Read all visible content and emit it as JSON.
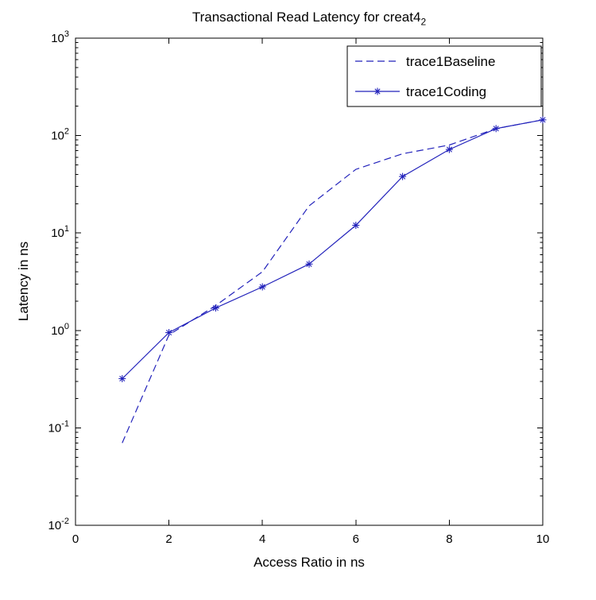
{
  "title": {
    "main": "Transactional Read Latency for creat4",
    "sub": "2"
  },
  "chart_data": {
    "type": "line",
    "title": "Transactional Read Latency for creat4_2",
    "xlabel": "Access Ratio in ns",
    "ylabel": "Latency in ns",
    "xlim": [
      0,
      10
    ],
    "x_ticks": [
      0,
      2,
      4,
      6,
      8,
      10
    ],
    "y_scale": "log",
    "ylim_exp": [
      -2,
      3
    ],
    "y_tick_exponents": [
      -2,
      -1,
      0,
      1,
      2,
      3
    ],
    "grid": false,
    "line_color": "#2222bb",
    "legend": {
      "position": "top-right",
      "entries": [
        "trace1Baseline",
        "trace1Coding"
      ]
    },
    "series": [
      {
        "name": "trace1Baseline",
        "style": "dashed",
        "marker": "none",
        "color": "#2222bb",
        "x": [
          1,
          2,
          3,
          4,
          5,
          6,
          7,
          8,
          9,
          10
        ],
        "values": [
          0.07,
          0.9,
          1.8,
          4.0,
          19,
          45,
          65,
          80,
          118,
          145
        ]
      },
      {
        "name": "trace1Coding",
        "style": "solid",
        "marker": "asterisk",
        "color": "#2222bb",
        "x": [
          1,
          2,
          3,
          4,
          5,
          6,
          7,
          8,
          9,
          10
        ],
        "values": [
          0.32,
          0.95,
          1.7,
          2.8,
          4.8,
          12,
          38,
          72,
          118,
          145
        ]
      }
    ]
  }
}
